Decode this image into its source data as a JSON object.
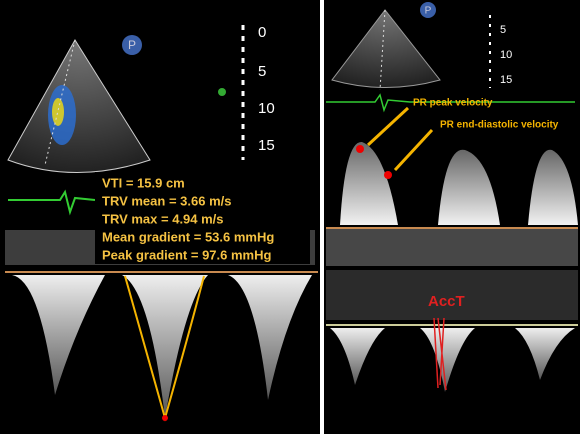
{
  "left_panel": {
    "probe_marker": "P",
    "depth_scale": [
      "0",
      "5",
      "10",
      "15"
    ],
    "measurements": [
      "VTI = 15.9 cm",
      "TRV mean = 3.66 m/s",
      "TRV max = 4.94 m/s",
      "Mean gradient = 53.6 mmHg",
      "Peak gradient = 97.6 mmHg"
    ]
  },
  "right_panel": {
    "probe_marker": "P",
    "depth_scale": [
      "5",
      "10",
      "15"
    ],
    "annotations": {
      "pr_peak": "PR peak velocity",
      "pr_end_diastolic": "PR end-diastolic velocity",
      "acct": "AccT"
    }
  }
}
